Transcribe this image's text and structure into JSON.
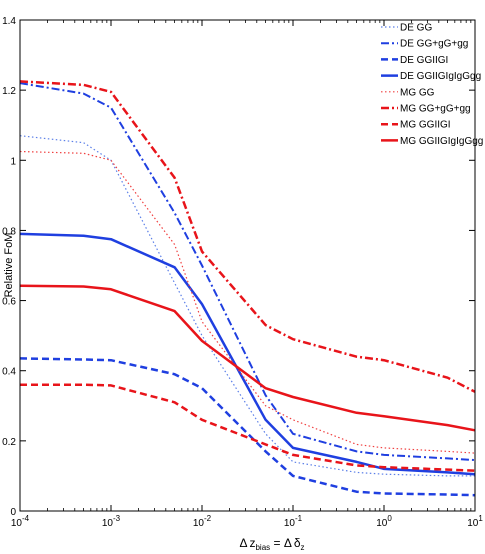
{
  "chart_data": {
    "type": "line",
    "title": "",
    "xlabel": "Δ z_bias = Δ δ_z",
    "xlabel_parts": {
      "delta1": "Δ",
      "z": "z",
      "bias": "bias",
      "eq": " = ",
      "delta2": "Δ",
      "d": "δ",
      "zsub": "z"
    },
    "ylabel": "Relative FoM",
    "xscale": "log",
    "xlim": [
      0.0001,
      10
    ],
    "ylim": [
      0,
      1.4
    ],
    "grid": false,
    "legend_position": "top-right",
    "x_tick_labels": [
      {
        "base": "10",
        "exp": "-4"
      },
      {
        "base": "10",
        "exp": "-3"
      },
      {
        "base": "10",
        "exp": "-2"
      },
      {
        "base": "10",
        "exp": "-1"
      },
      {
        "base": "10",
        "exp": "0"
      },
      {
        "base": "10",
        "exp": "1"
      }
    ],
    "y_ticks": [
      "0",
      "0.2",
      "0.4",
      "0.6",
      "0.8",
      "1",
      "1.2",
      "1.4"
    ],
    "x": [
      0.0001,
      0.0005,
      0.001,
      0.005,
      0.01,
      0.05,
      0.1,
      0.5,
      1,
      5,
      10
    ],
    "series": [
      {
        "name": "DE GG",
        "color": "#5b7fe8",
        "style": "dotted",
        "width": 1.2,
        "values": [
          1.07,
          1.05,
          1.0,
          0.65,
          0.5,
          0.22,
          0.14,
          0.11,
          0.105,
          0.1,
          0.1
        ]
      },
      {
        "name": "DE GG+gG+gg",
        "color": "#1f3fe0",
        "style": "dashdot",
        "width": 2,
        "values": [
          1.22,
          1.19,
          1.15,
          0.85,
          0.7,
          0.33,
          0.22,
          0.17,
          0.16,
          0.15,
          0.145
        ]
      },
      {
        "name": "DE GGIIGI",
        "color": "#1f3fe0",
        "style": "dashed",
        "width": 2.5,
        "values": [
          0.435,
          0.432,
          0.43,
          0.39,
          0.35,
          0.17,
          0.1,
          0.055,
          0.05,
          0.047,
          0.045
        ]
      },
      {
        "name": "DE GGIIGIgIgGgg",
        "color": "#1f3fe0",
        "style": "solid",
        "width": 2.5,
        "values": [
          0.79,
          0.785,
          0.775,
          0.695,
          0.59,
          0.26,
          0.18,
          0.14,
          0.12,
          0.11,
          0.105
        ]
      },
      {
        "name": "MG GG",
        "color": "#f04040",
        "style": "dotted",
        "width": 1.2,
        "values": [
          1.025,
          1.02,
          1.0,
          0.76,
          0.54,
          0.3,
          0.26,
          0.19,
          0.18,
          0.17,
          0.165
        ]
      },
      {
        "name": "MG GG+gG+gg",
        "color": "#e8141a",
        "style": "dashdot",
        "width": 2.5,
        "values": [
          1.225,
          1.215,
          1.195,
          0.95,
          0.74,
          0.53,
          0.49,
          0.44,
          0.43,
          0.38,
          0.34
        ]
      },
      {
        "name": "MG GGIIGI",
        "color": "#e8141a",
        "style": "dashed",
        "width": 2.5,
        "values": [
          0.36,
          0.36,
          0.358,
          0.31,
          0.26,
          0.19,
          0.16,
          0.13,
          0.125,
          0.118,
          0.115
        ]
      },
      {
        "name": "MG GGIIGIgIgGgg",
        "color": "#e8141a",
        "style": "solid",
        "width": 2.5,
        "values": [
          0.642,
          0.64,
          0.632,
          0.57,
          0.485,
          0.35,
          0.325,
          0.28,
          0.27,
          0.245,
          0.23
        ]
      }
    ]
  }
}
